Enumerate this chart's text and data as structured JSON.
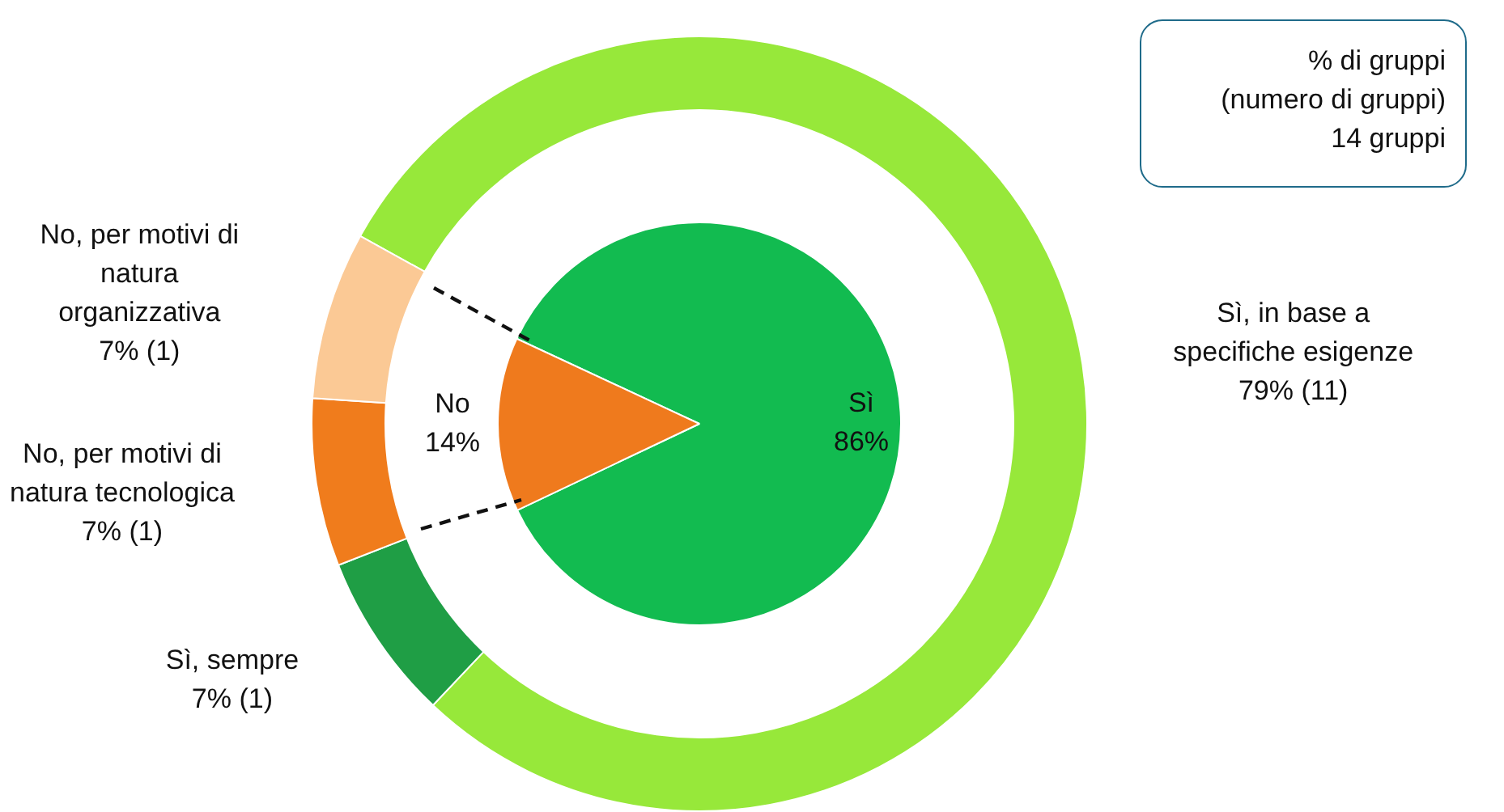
{
  "chart_data": [
    {
      "type": "donut",
      "categories": [
        "Sì, in base a specifiche esigenze",
        "Sì, sempre",
        "No, per motivi di natura tecnologica",
        "No, per motivi di natura organizzativa"
      ],
      "values": [
        79,
        7,
        7,
        7
      ],
      "value_labels": [
        "79% (11)",
        "7% (1)",
        "7% (1)",
        "7% (1)"
      ],
      "colors": [
        "#97e83a",
        "#1f9e45",
        "#f07c1c",
        "#fbc995"
      ],
      "annotations": [
        "% di gruppi",
        "(numero di gruppi)",
        "14  gruppi"
      ]
    },
    {
      "type": "pie",
      "categories": [
        "Sì",
        "No"
      ],
      "values": [
        86,
        14
      ],
      "value_labels": [
        "86%",
        "14%"
      ],
      "colors": [
        "#12bb50",
        "#ef7a1d"
      ]
    }
  ]
}
